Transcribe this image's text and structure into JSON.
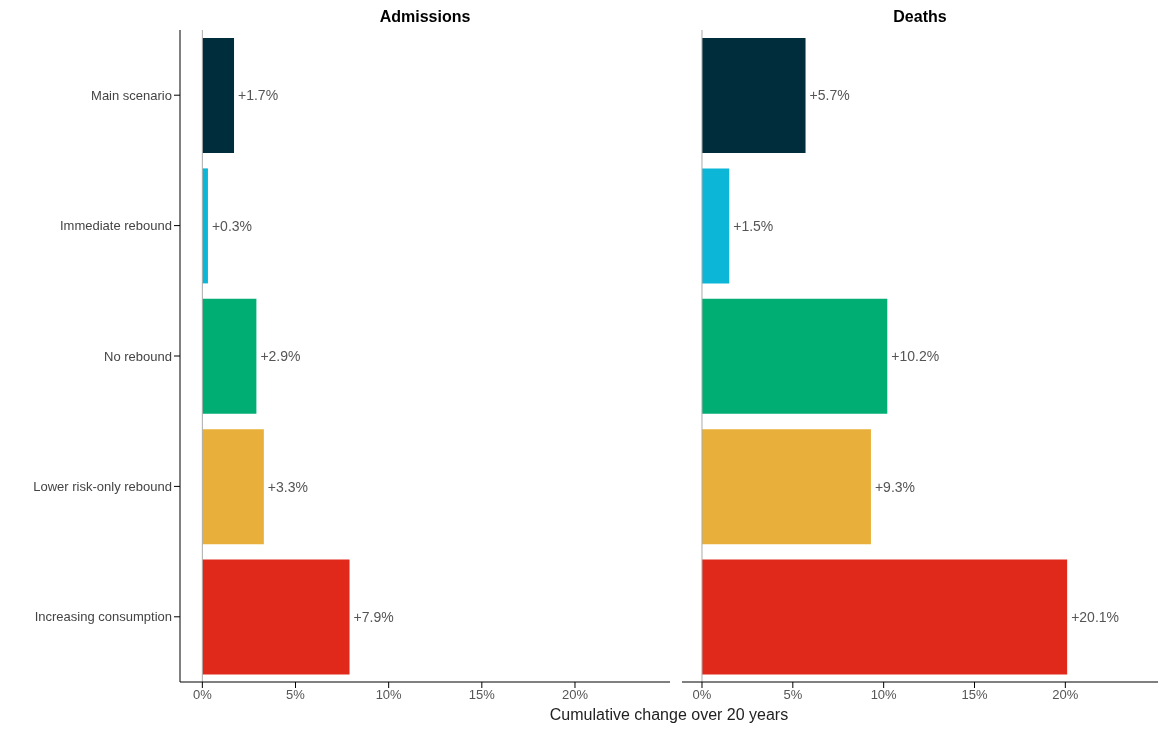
{
  "chart_data": [
    {
      "type": "bar",
      "orientation": "horizontal",
      "title": "Admissions",
      "xlabel": "Cumulative change over 20 years",
      "categories": [
        "Main scenario",
        "Immediate rebound",
        "No rebound",
        "Lower risk-only rebound",
        "Increasing consumption"
      ],
      "values": [
        1.7,
        0.3,
        2.9,
        3.3,
        7.9
      ],
      "value_labels": [
        "+1.7%",
        "+0.3%",
        "+2.9%",
        "+3.3%",
        "+7.9%"
      ],
      "colors": [
        "#002d3c",
        "#0bb6d6",
        "#00ad73",
        "#e8b03a",
        "#e1291b"
      ],
      "xlim": [
        -1.2,
        25.1
      ],
      "xticks": [
        {
          "value": 0,
          "label": "0%"
        },
        {
          "value": 5,
          "label": "5%"
        },
        {
          "value": 10,
          "label": "10%"
        },
        {
          "value": 15,
          "label": "15%"
        },
        {
          "value": 20,
          "label": "20%"
        }
      ],
      "ref_lines": [
        {
          "axis": "x",
          "value": 0,
          "color": "#aaaaaa"
        }
      ]
    },
    {
      "type": "bar",
      "orientation": "horizontal",
      "title": "Deaths",
      "categories": [
        null,
        null,
        null,
        null,
        null
      ],
      "values": [
        5.7,
        1.5,
        10.2,
        9.3,
        20.1
      ],
      "value_labels": [
        "+5.7%",
        "+1.5%",
        "+10.2%",
        "+9.3%",
        "+20.1%"
      ],
      "colors": [
        "#002d3c",
        "#0bb6d6",
        "#00ad73",
        "#e8b03a",
        "#e1291b"
      ],
      "xlim": [
        -1.1,
        25.1
      ],
      "xticks": [
        {
          "value": 0,
          "label": "0%"
        },
        {
          "value": 5,
          "label": "5%"
        },
        {
          "value": 10,
          "label": "10%"
        },
        {
          "value": 15,
          "label": "15%"
        },
        {
          "value": 20,
          "label": "20%"
        }
      ],
      "ref_lines": [
        {
          "axis": "x",
          "value": 0,
          "color": "#aaaaaa"
        }
      ],
      "tick_labels": "x"
    }
  ]
}
